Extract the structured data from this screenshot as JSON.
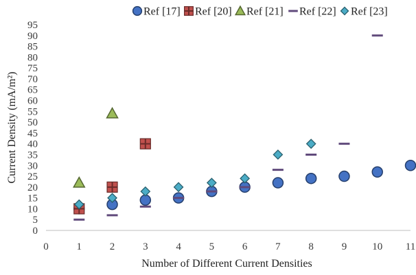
{
  "chart_data": {
    "type": "scatter",
    "title": "",
    "xlabel": "Number of Different Current Densities",
    "ylabel": "Current Density (mA/m²)",
    "xlim": [
      0,
      11
    ],
    "ylim": [
      0,
      95
    ],
    "x_ticks": [
      0,
      1,
      2,
      3,
      4,
      5,
      6,
      7,
      8,
      9,
      10,
      11
    ],
    "y_ticks": [
      0,
      5,
      10,
      15,
      20,
      25,
      30,
      35,
      40,
      45,
      50,
      55,
      60,
      65,
      70,
      75,
      80,
      85,
      90,
      95
    ],
    "grid": false,
    "legend_position": "top-right",
    "series": [
      {
        "name": "Ref [17]",
        "marker": "circle",
        "color": "#4472c4",
        "points": [
          [
            1,
            10
          ],
          [
            2,
            12
          ],
          [
            3,
            14
          ],
          [
            4,
            15
          ],
          [
            5,
            18
          ],
          [
            6,
            20
          ],
          [
            7,
            22
          ],
          [
            8,
            24
          ],
          [
            9,
            25
          ],
          [
            10,
            27
          ],
          [
            11,
            30
          ]
        ]
      },
      {
        "name": "Ref [20]",
        "marker": "square-plus",
        "color": "#c0504d",
        "points": [
          [
            1,
            10
          ],
          [
            2,
            20
          ],
          [
            3,
            40
          ]
        ]
      },
      {
        "name": "Ref [21]",
        "marker": "triangle",
        "color": "#9bbb59",
        "points": [
          [
            1,
            22
          ],
          [
            2,
            54
          ]
        ]
      },
      {
        "name": "Ref [22]",
        "marker": "dash",
        "color": "#604a7b",
        "points": [
          [
            1,
            5
          ],
          [
            2,
            7
          ],
          [
            3,
            11
          ],
          [
            4,
            15
          ],
          [
            5,
            18
          ],
          [
            6,
            20
          ],
          [
            7,
            28
          ],
          [
            8,
            35
          ],
          [
            9,
            40
          ],
          [
            10,
            90
          ]
        ]
      },
      {
        "name": "Ref [23]",
        "marker": "diamond",
        "color": "#4bacc6",
        "points": [
          [
            1,
            12
          ],
          [
            2,
            15
          ],
          [
            3,
            18
          ],
          [
            4,
            20
          ],
          [
            5,
            22
          ],
          [
            6,
            24
          ],
          [
            7,
            35
          ],
          [
            8,
            40
          ]
        ]
      }
    ]
  }
}
